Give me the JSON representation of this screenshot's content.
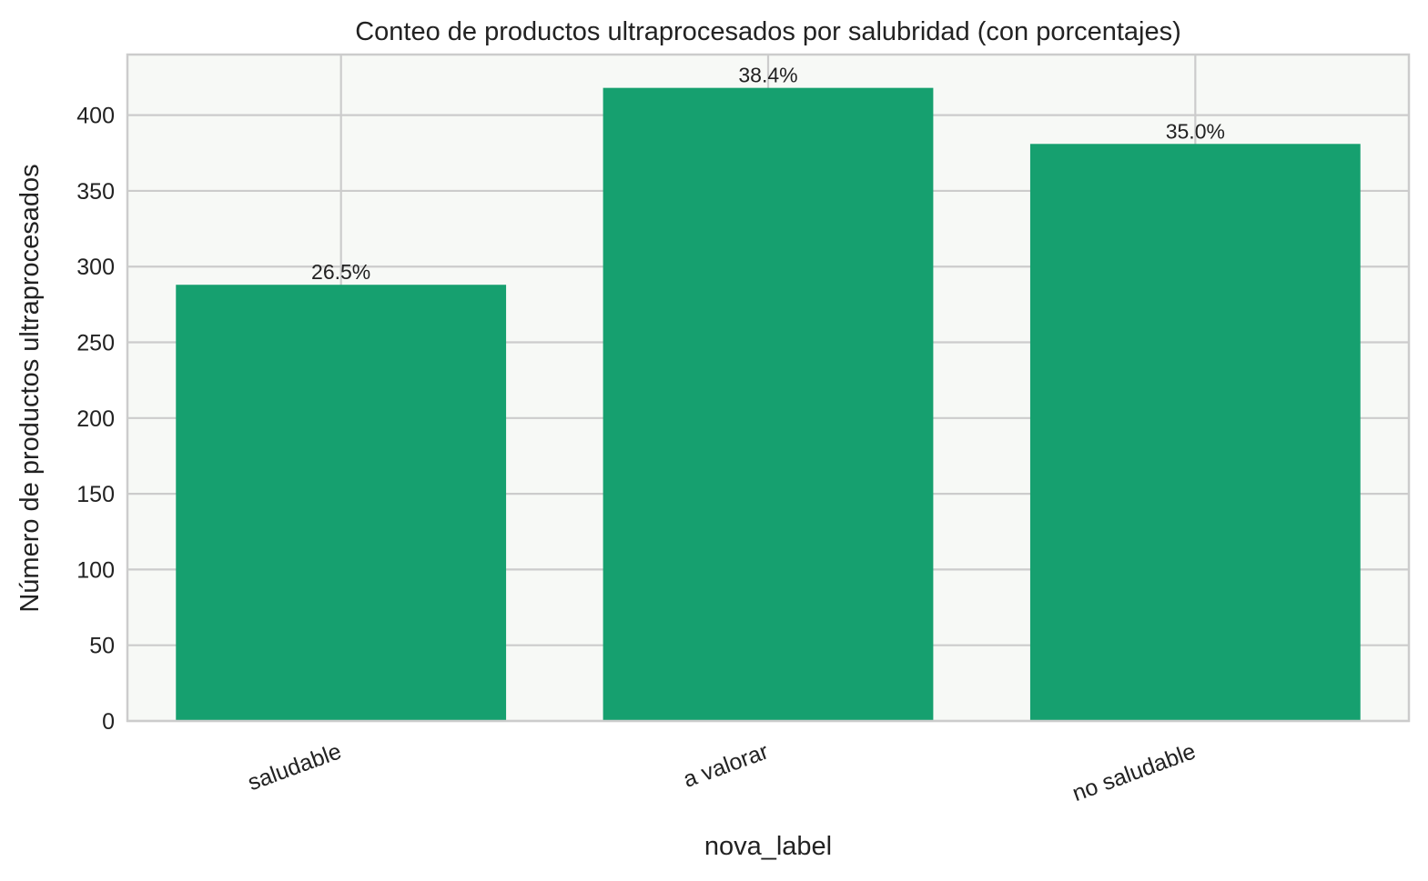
{
  "chart_data": {
    "type": "bar",
    "title": "Conteo de productos ultraprocesados por salubridad (con porcentajes)",
    "xlabel": "nova_label",
    "ylabel": "Número de productos ultraprocesados",
    "categories": [
      "saludable",
      "a valorar",
      "no saludable"
    ],
    "values": [
      288,
      418,
      381
    ],
    "data_labels": [
      "26.5%",
      "38.4%",
      "35.0%"
    ],
    "ylim": [
      0,
      440
    ],
    "yticks": [
      0,
      50,
      100,
      150,
      200,
      250,
      300,
      350,
      400
    ],
    "grid": true,
    "bar_color": "#16a06f",
    "background_color": "#f7f9f6",
    "legend": "none"
  }
}
